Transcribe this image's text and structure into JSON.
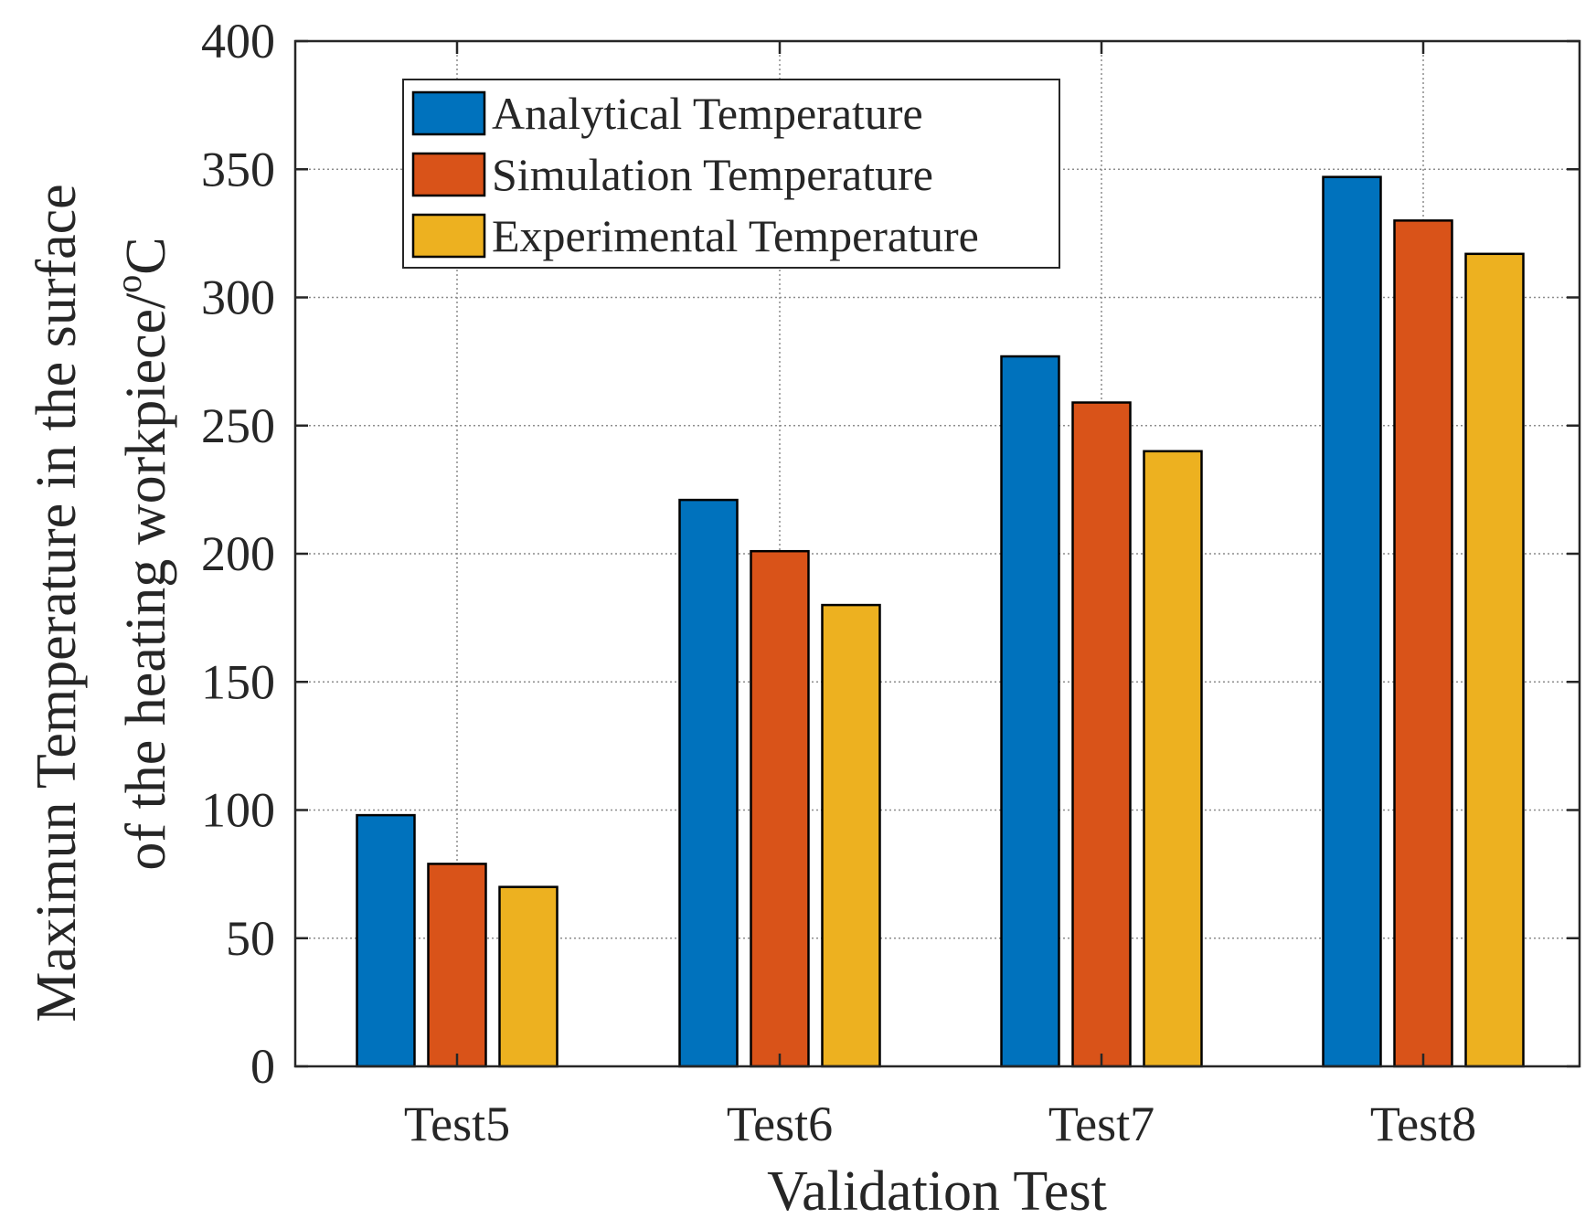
{
  "chart_data": {
    "type": "bar",
    "categories": [
      "Test5",
      "Test6",
      "Test7",
      "Test8"
    ],
    "series": [
      {
        "name": "Analytical Temperature",
        "color": "#0072BD",
        "values": [
          98,
          221,
          277,
          347
        ]
      },
      {
        "name": "Simulation Temperature",
        "color": "#D95319",
        "values": [
          79,
          201,
          259,
          330
        ]
      },
      {
        "name": "Experimental Temperature",
        "color": "#EDB120",
        "values": [
          70,
          180,
          240,
          317
        ]
      }
    ],
    "xlabel": "Validation Test",
    "ylabel_line1": "Maximun Temperature in the surface",
    "ylabel_line2_main": "of the heating workpiece/",
    "ylabel_line2_sup": "o",
    "ylabel_line2_unit": "C",
    "ylim": [
      0,
      400
    ],
    "yticks": [
      "0",
      "50",
      "100",
      "150",
      "200",
      "250",
      "300",
      "350",
      "400"
    ],
    "grid": true,
    "legend_position": "top-left"
  }
}
